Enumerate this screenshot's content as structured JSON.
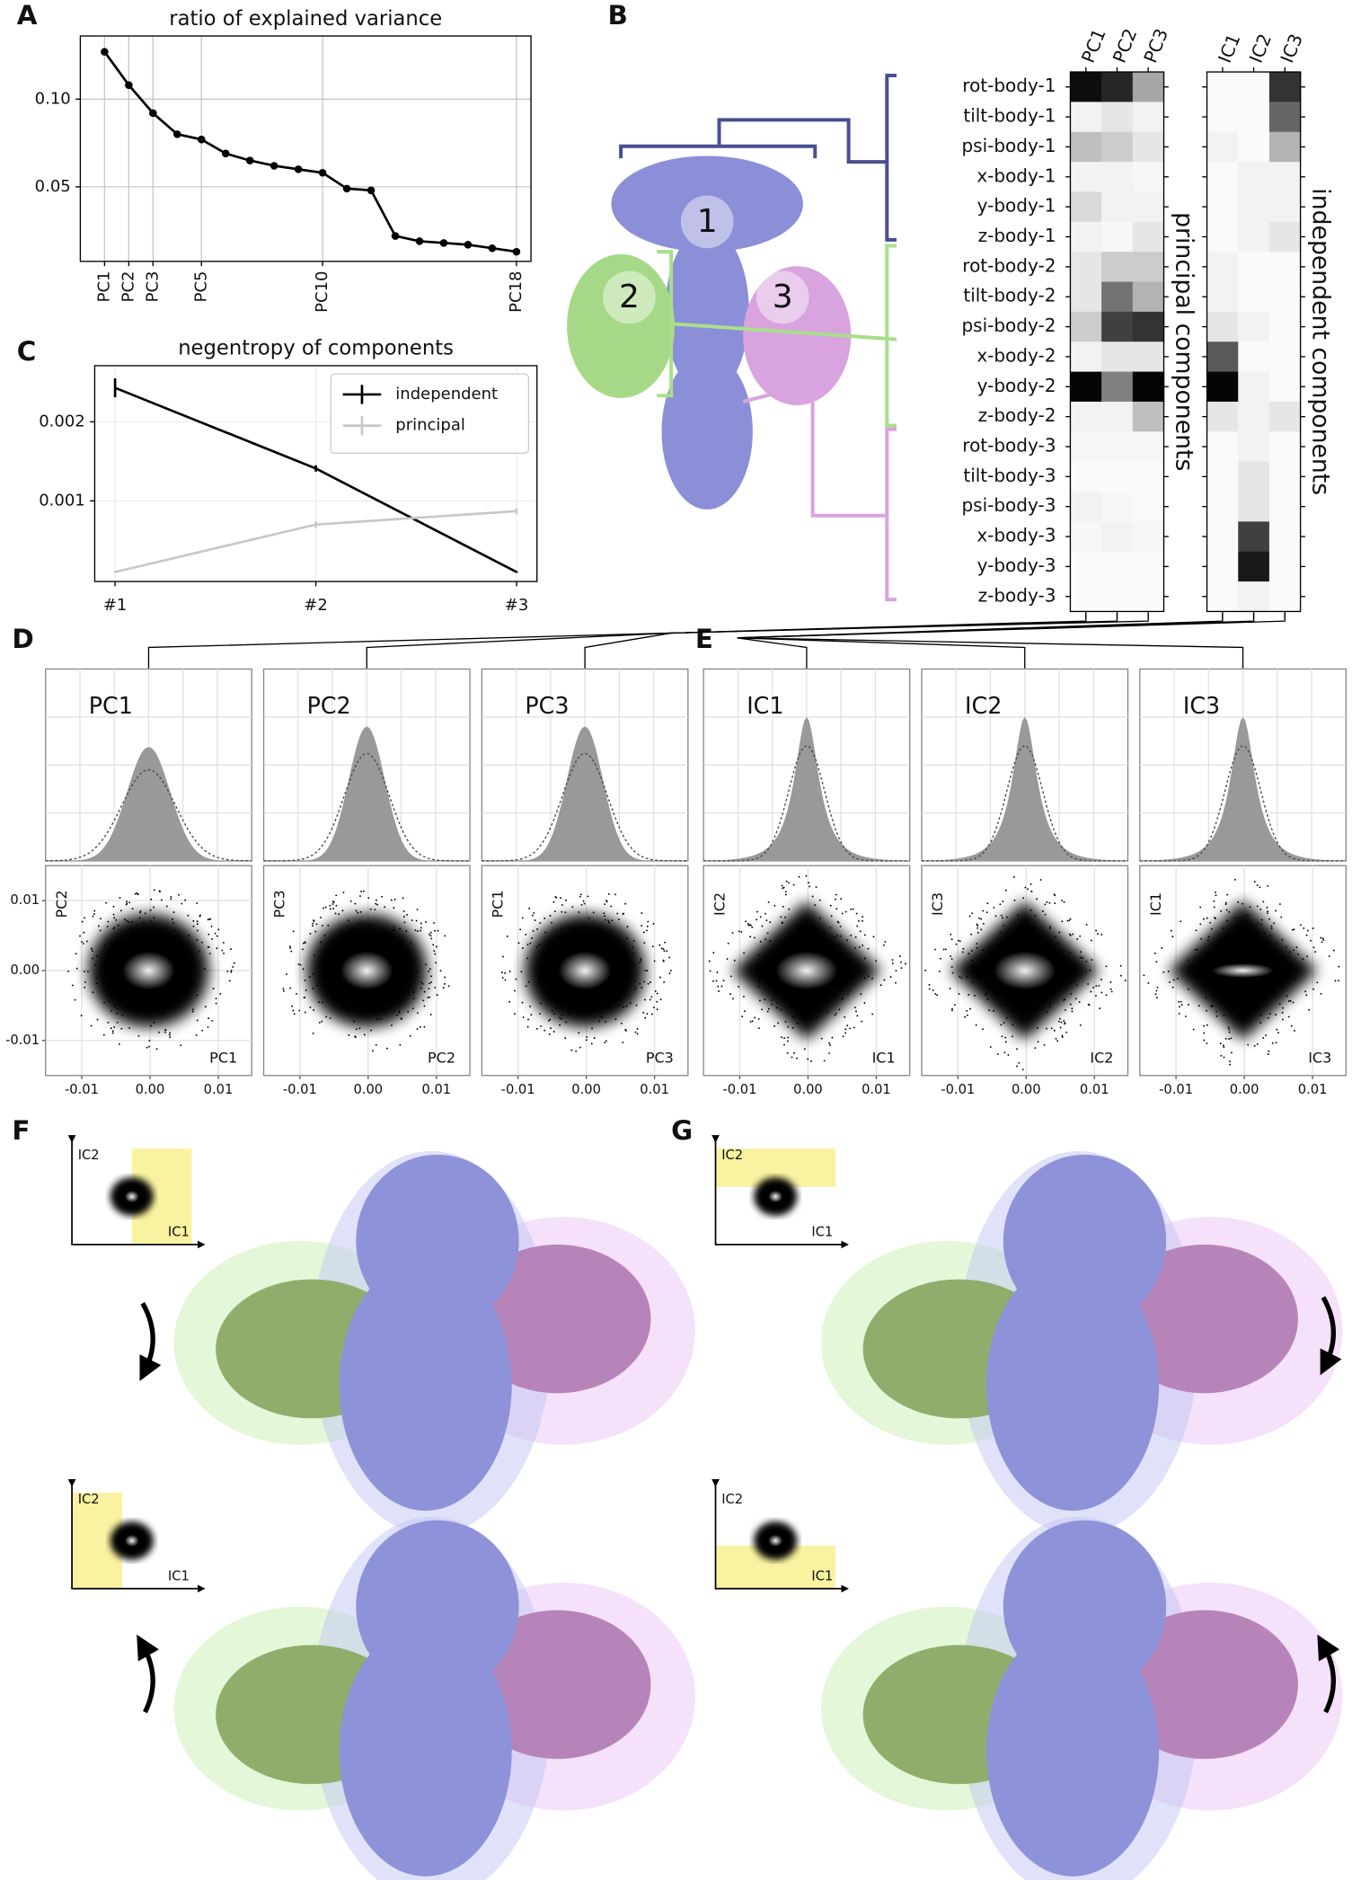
{
  "panel_labels": [
    "A",
    "B",
    "C",
    "D",
    "E",
    "F",
    "G"
  ],
  "chart_data": [
    {
      "type": "line",
      "title": "ratio of explained variance",
      "x": [
        1,
        2,
        3,
        4,
        5,
        6,
        7,
        8,
        9,
        10,
        11,
        12,
        13,
        14,
        15,
        16,
        17,
        18
      ],
      "values": [
        0.127,
        0.108,
        0.092,
        0.08,
        0.077,
        0.069,
        0.065,
        0.062,
        0.06,
        0.058,
        0.049,
        0.048,
        0.022,
        0.019,
        0.018,
        0.017,
        0.015,
        0.013
      ],
      "xlim": [
        0,
        18.6
      ],
      "xticks": [
        {
          "value": 1,
          "label": "PC1"
        },
        {
          "value": 2,
          "label": "PC2"
        },
        {
          "value": 3,
          "label": "PC3"
        },
        {
          "value": 5,
          "label": "PC5"
        },
        {
          "value": 10,
          "label": "PC10"
        },
        {
          "value": 18,
          "label": "PC18"
        }
      ],
      "ylim": [
        0.0075,
        0.136
      ],
      "yticks": [
        {
          "value": 0.05,
          "label": "0.05"
        },
        {
          "value": 0.1,
          "label": "0.10"
        }
      ],
      "color": "#000000",
      "grid": true
    },
    {
      "type": "line",
      "title": "negentropy of components",
      "categories": [
        "#1",
        "#2",
        "#3"
      ],
      "series": [
        {
          "name": "independent",
          "color": "#000000",
          "values": [
            0.00243,
            0.00141,
            0.0001
          ],
          "errors": [
            0.00012,
            4e-05,
            1e-05
          ]
        },
        {
          "name": "principal",
          "color": "#c8c8c8",
          "values": [
            0.0001,
            0.0007,
            0.00087
          ],
          "errors": [
            1e-05,
            4e-05,
            4e-05
          ]
        }
      ],
      "ylim": [
        -2e-05,
        0.00271
      ],
      "yticks": [
        0.001,
        0.002
      ],
      "grid": true,
      "legend": "upper right"
    },
    {
      "type": "heatmap",
      "ylabel": "principal components",
      "color": "#000000",
      "columns": [
        "PC1",
        "PC2",
        "PC3"
      ],
      "rows": [
        "rot-body-1",
        "tilt-body-1",
        "psi-body-1",
        "x-body-1",
        "y-body-1",
        "z-body-1",
        "rot-body-2",
        "tilt-body-2",
        "psi-body-2",
        "x-body-2",
        "y-body-2",
        "z-body-2",
        "rot-body-3",
        "tilt-body-3",
        "psi-body-3",
        "x-body-3",
        "y-body-3",
        "z-body-3"
      ],
      "values": [
        [
          0.95,
          0.85,
          0.35
        ],
        [
          0.05,
          0.1,
          0.05
        ],
        [
          0.25,
          0.2,
          0.1
        ],
        [
          0.05,
          0.05,
          0.03
        ],
        [
          0.15,
          0.05,
          0.05
        ],
        [
          0.05,
          0.03,
          0.1
        ],
        [
          0.1,
          0.2,
          0.2
        ],
        [
          0.1,
          0.55,
          0.3
        ],
        [
          0.2,
          0.75,
          0.8
        ],
        [
          0.05,
          0.1,
          0.1
        ],
        [
          0.98,
          0.5,
          0.98
        ],
        [
          0.05,
          0.05,
          0.25
        ],
        [
          0.03,
          0.03,
          0.03
        ],
        [
          0.02,
          0.02,
          0.02
        ],
        [
          0.05,
          0.03,
          0.02
        ],
        [
          0.03,
          0.05,
          0.03
        ],
        [
          0.02,
          0.02,
          0.02
        ],
        [
          0.02,
          0.02,
          0.02
        ]
      ]
    },
    {
      "type": "heatmap",
      "ylabel": "independent components",
      "color": "#000000",
      "columns": [
        "IC1",
        "IC2",
        "IC3"
      ],
      "values": [
        [
          0.02,
          0.02,
          0.8
        ],
        [
          0.02,
          0.02,
          0.6
        ],
        [
          0.05,
          0.02,
          0.3
        ],
        [
          0.02,
          0.05,
          0.05
        ],
        [
          0.02,
          0.05,
          0.05
        ],
        [
          0.02,
          0.05,
          0.1
        ],
        [
          0.05,
          0.02,
          0.02
        ],
        [
          0.05,
          0.02,
          0.02
        ],
        [
          0.1,
          0.05,
          0.02
        ],
        [
          0.65,
          0.02,
          0.02
        ],
        [
          0.98,
          0.05,
          0.02
        ],
        [
          0.1,
          0.05,
          0.1
        ],
        [
          0.02,
          0.05,
          0.02
        ],
        [
          0.02,
          0.1,
          0.02
        ],
        [
          0.02,
          0.1,
          0.02
        ],
        [
          0.02,
          0.75,
          0.02
        ],
        [
          0.02,
          0.9,
          0.02
        ],
        [
          0.02,
          0.05,
          0.02
        ]
      ]
    },
    {
      "type": "scatter",
      "title": "PC1",
      "xlabel": "PC1",
      "ylabel": "PC2",
      "xlim": [
        -0.0153,
        0.0149
      ],
      "ylim": [
        -0.015,
        0.015
      ],
      "xticks": [
        -0.01,
        {
          "value": 0,
          "label": "0.00"
        },
        0.01
      ],
      "yticks": [
        -0.01,
        {
          "value": 0,
          "label": "0.00"
        },
        0.01
      ]
    },
    {
      "type": "scatter",
      "title": "PC2",
      "xlabel": "PC2",
      "ylabel": "PC3",
      "xlim": [
        -0.0153,
        0.0149
      ],
      "ylim": [
        -0.015,
        0.015
      ],
      "xticks": [
        -0.01,
        {
          "value": 0,
          "label": "0.00"
        },
        0.01
      ]
    },
    {
      "type": "scatter",
      "title": "PC3",
      "xlabel": "PC3",
      "ylabel": "PC1",
      "xlim": [
        -0.0153,
        0.0149
      ],
      "ylim": [
        -0.015,
        0.015
      ],
      "xticks": [
        -0.01,
        {
          "value": 0,
          "label": "0.00"
        },
        0.01
      ]
    },
    {
      "type": "scatter",
      "title": "IC1",
      "xlabel": "IC1",
      "ylabel": "IC2",
      "xlim": [
        -0.0153,
        0.0149
      ],
      "ylim": [
        -0.015,
        0.015
      ],
      "xticks": [
        -0.01,
        {
          "value": 0,
          "label": "0.00"
        },
        0.01
      ]
    },
    {
      "type": "scatter",
      "title": "IC2",
      "xlabel": "IC2",
      "ylabel": "IC3",
      "xlim": [
        -0.0153,
        0.0149
      ],
      "ylim": [
        -0.015,
        0.015
      ],
      "xticks": [
        -0.01,
        {
          "value": 0,
          "label": "0.00"
        },
        0.01
      ]
    },
    {
      "type": "scatter",
      "title": "IC3",
      "xlabel": "IC3",
      "ylabel": "IC1",
      "xlim": [
        -0.0153,
        0.0149
      ],
      "ylim": [
        -0.015,
        0.015
      ],
      "xticks": [
        -0.01,
        {
          "value": 0,
          "label": "0.00"
        },
        0.01
      ]
    }
  ],
  "structure": {
    "labels": [
      "1",
      "2",
      "3"
    ]
  },
  "renderings": [
    {
      "xlabel": "IC1",
      "ylabel": "IC2"
    },
    {
      "xlabel": "IC1",
      "ylabel": "IC2"
    },
    {
      "xlabel": "IC1",
      "ylabel": "IC2"
    },
    {
      "xlabel": "IC1",
      "ylabel": "IC2"
    }
  ]
}
